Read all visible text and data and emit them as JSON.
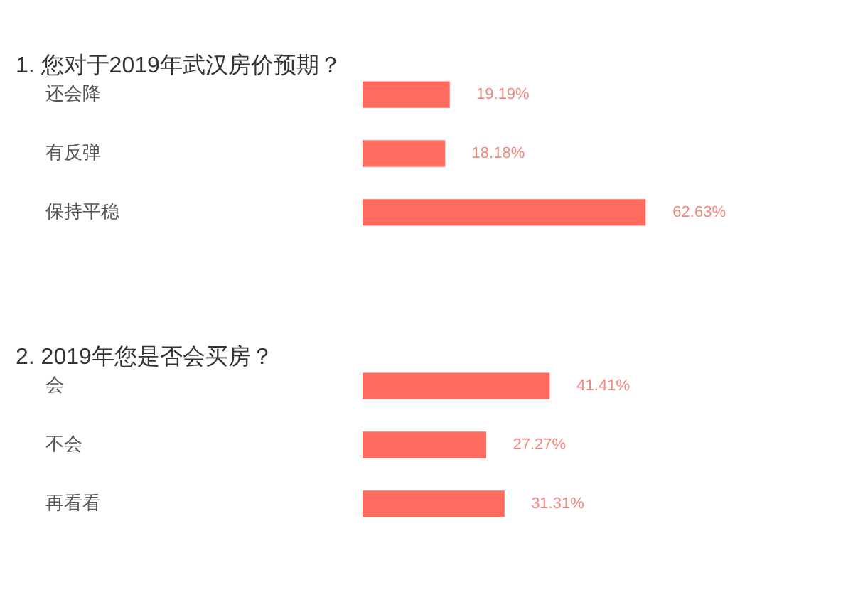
{
  "chart_data": [
    {
      "type": "bar",
      "title": "1. 您对于2019年武汉房价预期？",
      "orientation": "horizontal",
      "categories": [
        "还会降",
        "有反弹",
        "保持平稳"
      ],
      "values": [
        19.19,
        18.18,
        62.63
      ],
      "value_labels": [
        "19.19%",
        "18.18%",
        "62.63%"
      ],
      "color": "#ff6c5f",
      "tick_labels": "y"
    },
    {
      "type": "bar",
      "title": "2. 2019年您是否会买房？",
      "orientation": "horizontal",
      "categories": [
        "会",
        "不会",
        "再看看"
      ],
      "values": [
        41.41,
        27.27,
        31.31
      ],
      "value_labels": [
        "41.41%",
        "27.27%",
        "31.31%"
      ],
      "color": "#ff6c5f",
      "tick_labels": "y"
    }
  ]
}
